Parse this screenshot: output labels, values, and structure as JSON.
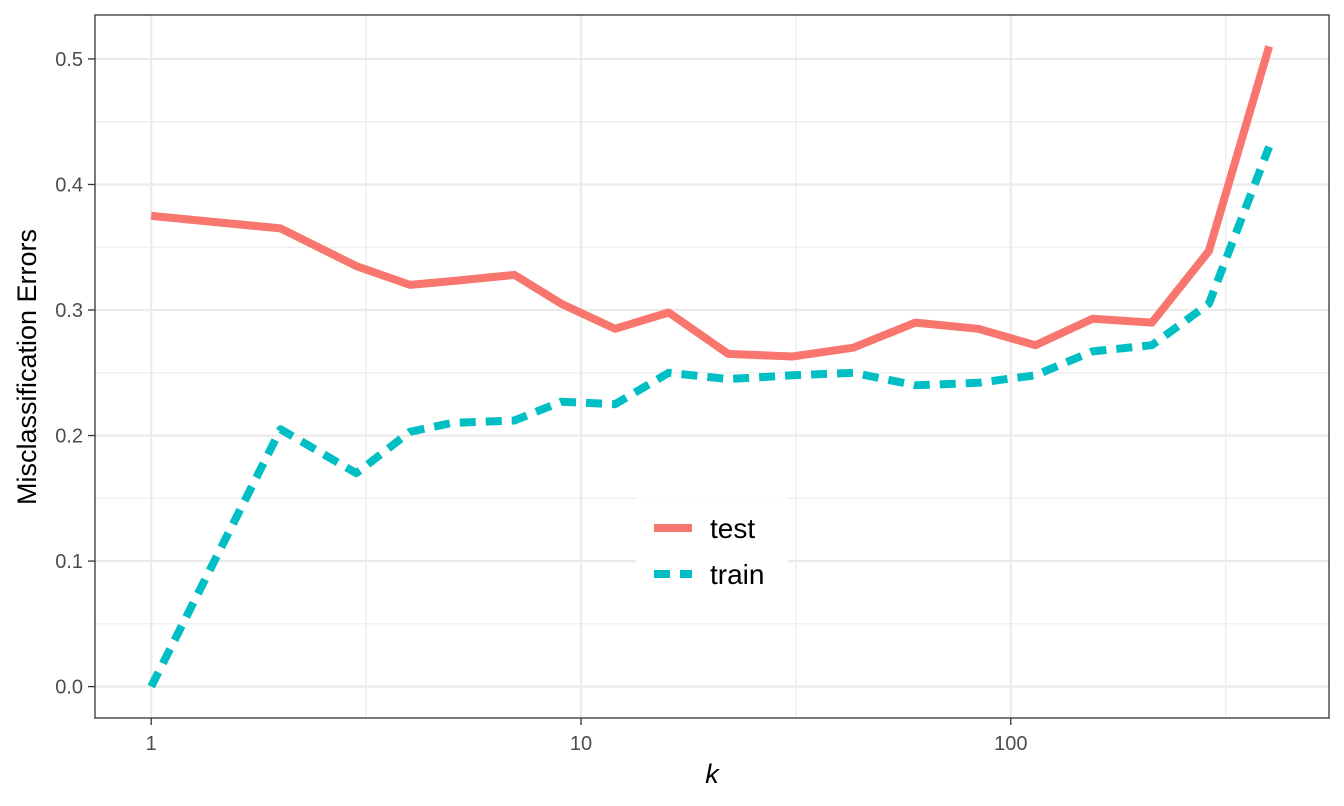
{
  "chart_data": {
    "type": "line",
    "xlabel": "k",
    "ylabel": "Misclassification Errors",
    "x_scale": "log10",
    "xlim": [
      0.74,
      550
    ],
    "ylim": [
      -0.025,
      0.535
    ],
    "x_ticks": [
      1,
      10,
      100
    ],
    "x_tick_labels": [
      "1",
      "10",
      "100"
    ],
    "y_ticks": [
      0.0,
      0.1,
      0.2,
      0.3,
      0.4,
      0.5
    ],
    "y_tick_labels": [
      "0.0",
      "0.1",
      "0.2",
      "0.3",
      "0.4",
      "0.5"
    ],
    "grid": true,
    "legend_position": "center",
    "series": [
      {
        "name": "test",
        "color": "#F8766D",
        "line_style": "solid",
        "x": [
          1,
          2,
          3,
          4,
          5,
          7,
          9,
          12,
          16,
          22,
          31,
          43,
          60,
          84,
          114,
          155,
          213,
          289,
          399
        ],
        "y": [
          0.375,
          0.365,
          0.335,
          0.32,
          0.323,
          0.328,
          0.305,
          0.285,
          0.298,
          0.265,
          0.263,
          0.27,
          0.29,
          0.285,
          0.272,
          0.293,
          0.29,
          0.347,
          0.51
        ]
      },
      {
        "name": "train",
        "color": "#00BFC4",
        "line_style": "dashed",
        "x": [
          1,
          2,
          3,
          4,
          5,
          7,
          9,
          12,
          16,
          22,
          31,
          43,
          60,
          84,
          114,
          155,
          213,
          289,
          399
        ],
        "y": [
          0.0,
          0.205,
          0.17,
          0.203,
          0.21,
          0.212,
          0.227,
          0.225,
          0.25,
          0.245,
          0.248,
          0.25,
          0.24,
          0.242,
          0.248,
          0.267,
          0.272,
          0.305,
          0.43
        ]
      }
    ]
  }
}
